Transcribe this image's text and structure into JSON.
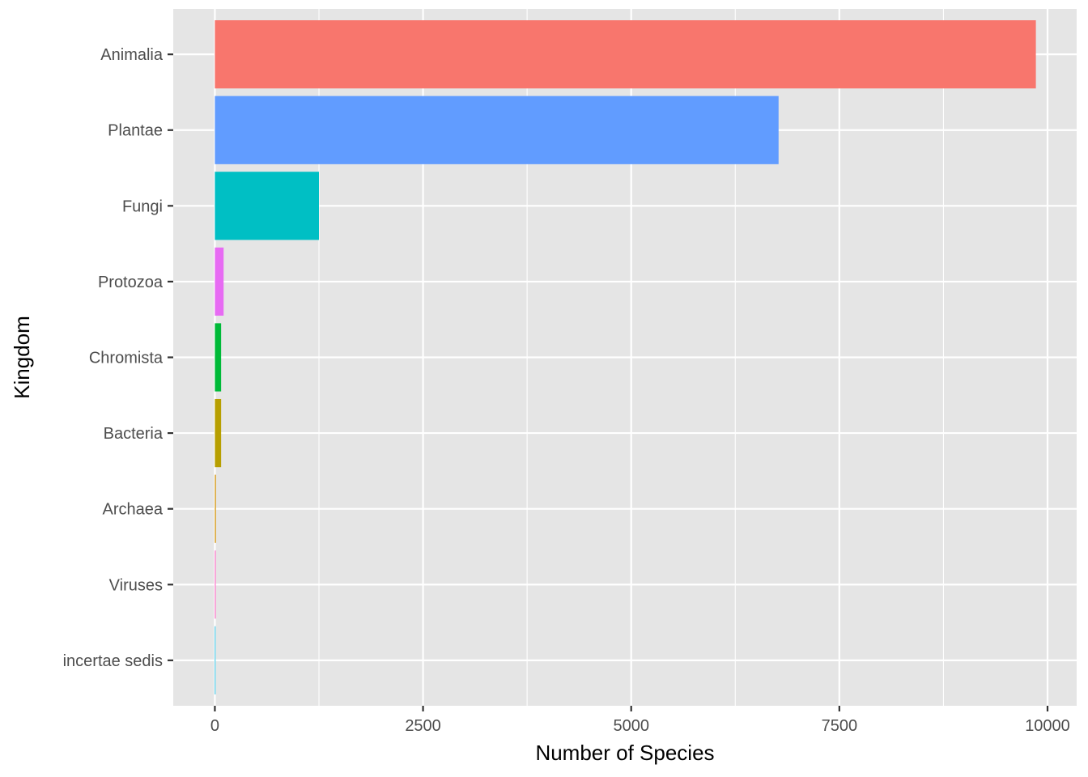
{
  "chart_data": {
    "type": "bar",
    "orientation": "horizontal",
    "title": "",
    "xlabel": "Number of Species",
    "ylabel": "Kingdom",
    "categories": [
      "Animalia",
      "Plantae",
      "Fungi",
      "Protozoa",
      "Chromista",
      "Bacteria",
      "Archaea",
      "Viruses",
      "incertae sedis"
    ],
    "values": [
      9860,
      6770,
      1250,
      105,
      75,
      75,
      12,
      10,
      5
    ],
    "colors": [
      "#F8766D",
      "#619CFF",
      "#00BFC4",
      "#E76BF3",
      "#00BA38",
      "#B79F00",
      "#D39200",
      "#FF61C3",
      "#00B9E3"
    ],
    "xlim": [
      -500,
      10350
    ],
    "xticks": [
      0,
      2500,
      5000,
      7500,
      10000
    ],
    "xtick_labels": [
      "0",
      "2500",
      "5000",
      "7500",
      "10000"
    ],
    "grid": true,
    "panel_background": "#E5E5E5",
    "grid_color": "#FFFFFF",
    "legend": "none"
  }
}
